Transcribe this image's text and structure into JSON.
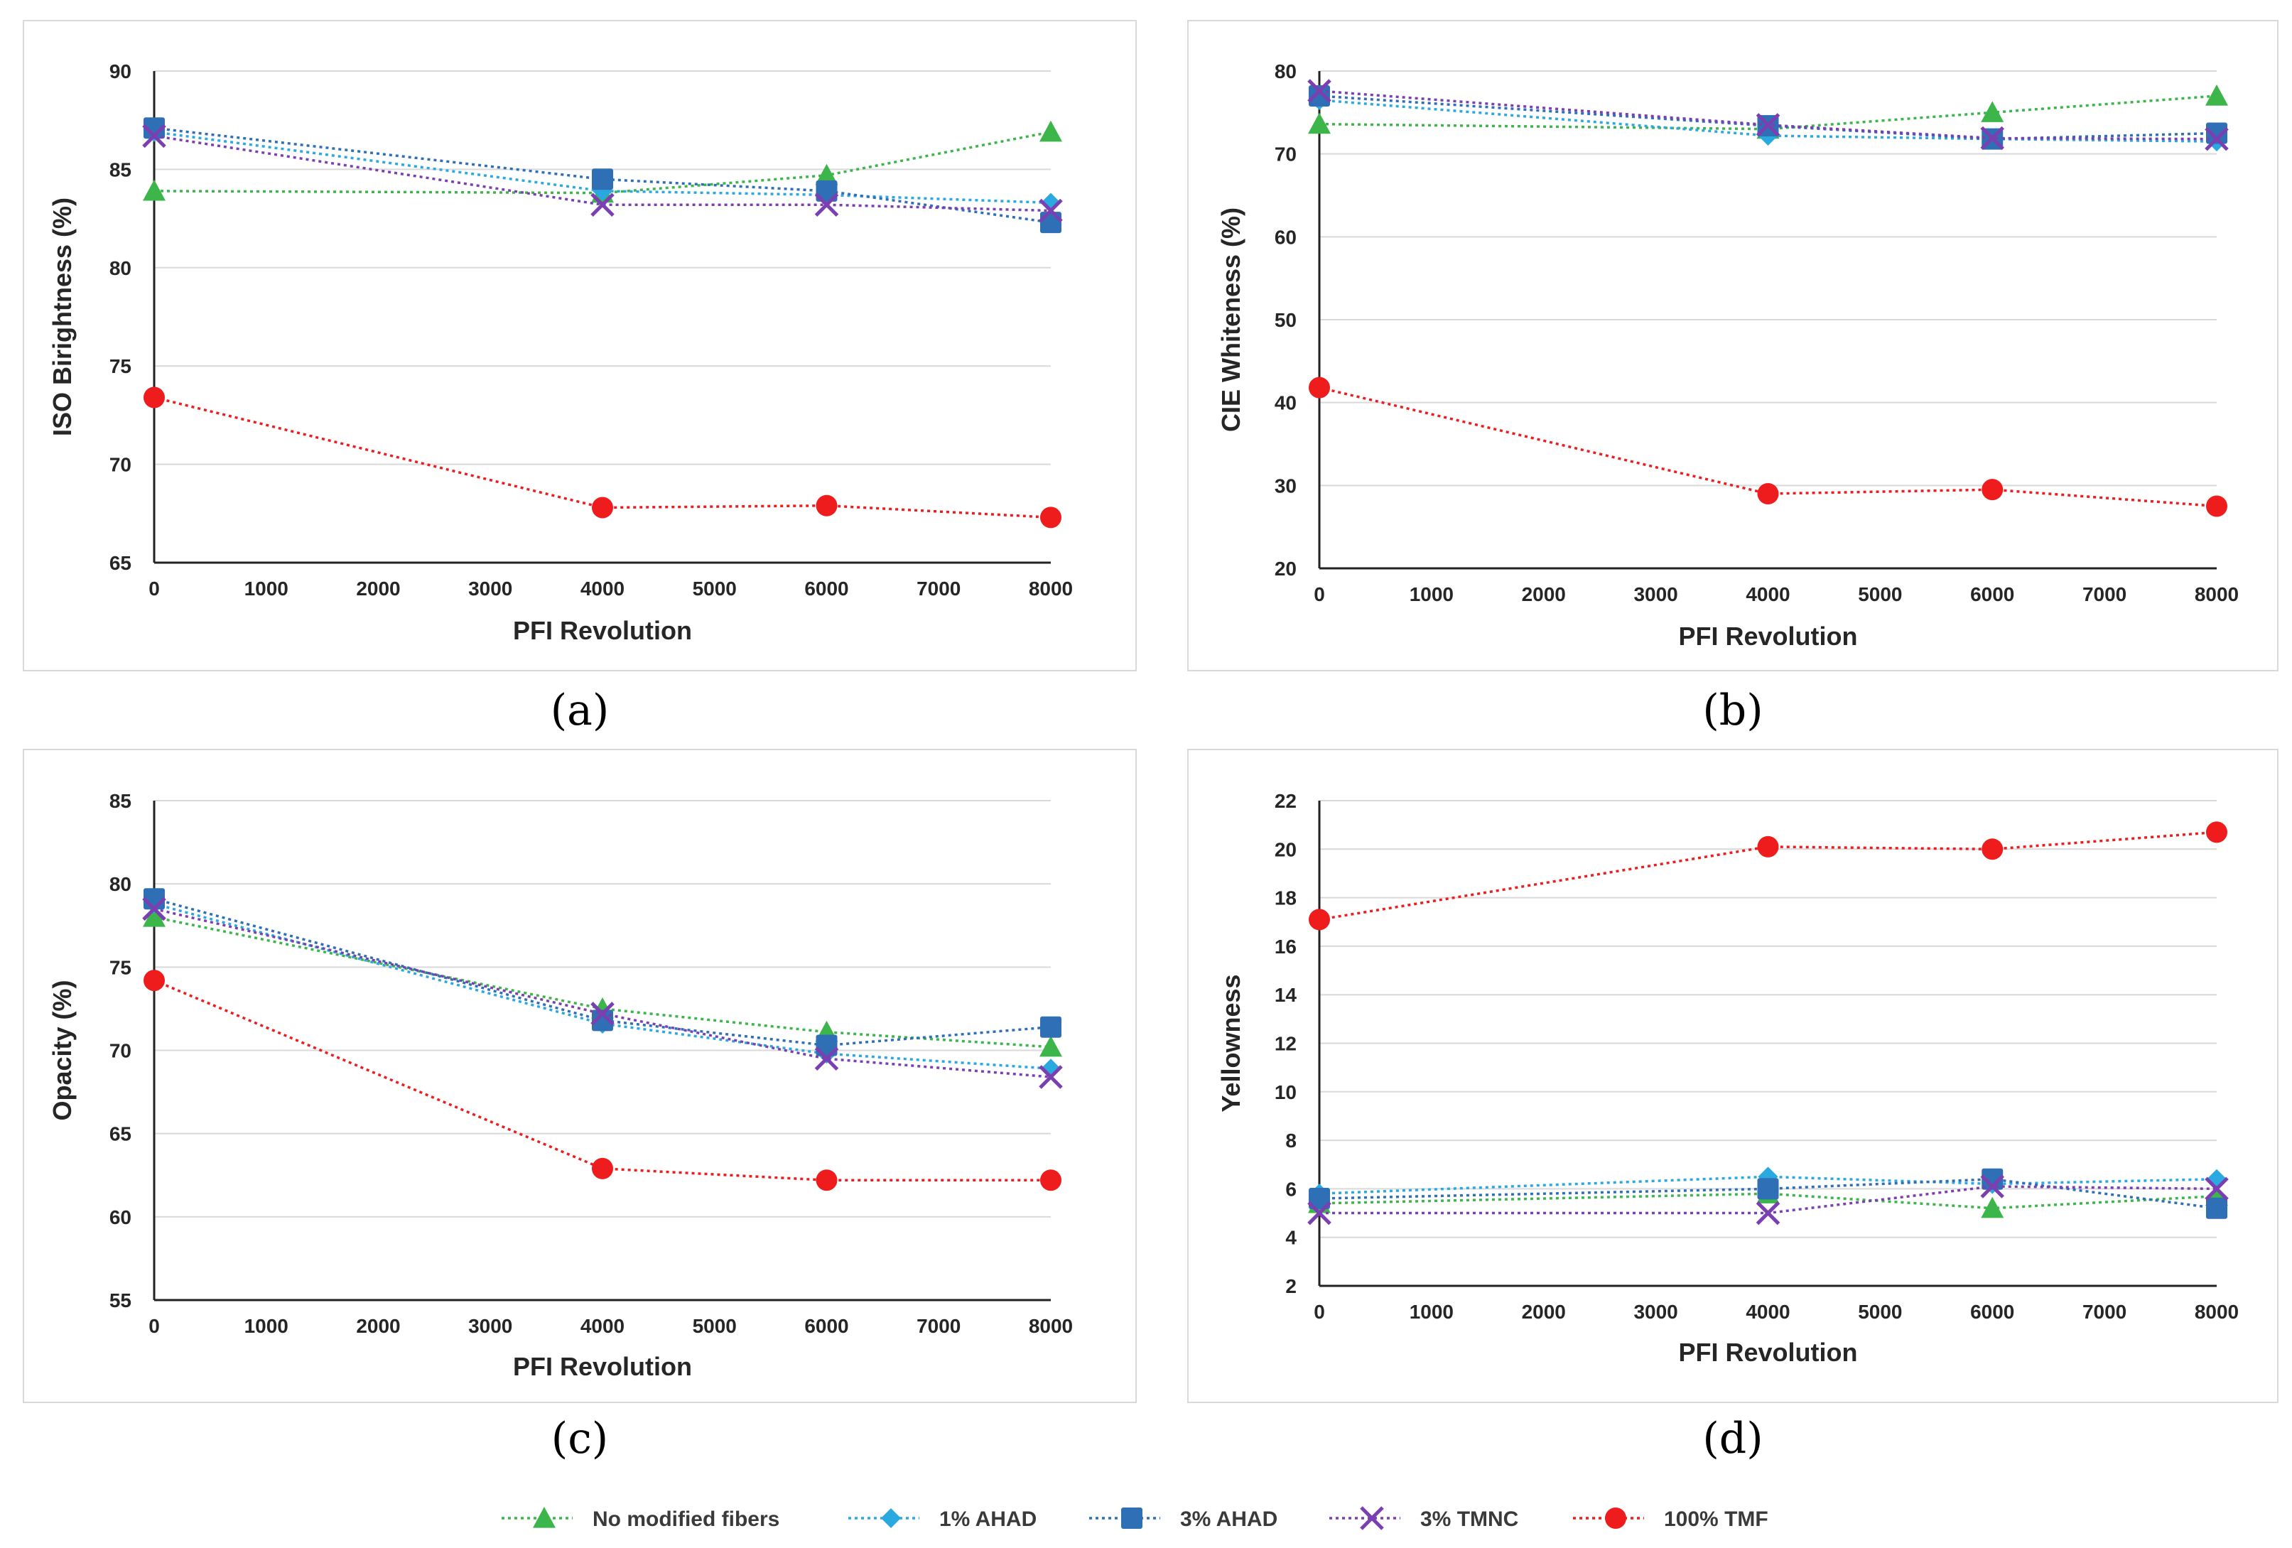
{
  "series_styles": [
    {
      "name": "No modified fibers",
      "color": "#3cb54a",
      "marker": "triangle"
    },
    {
      "name": "1% AHAD",
      "color": "#2aa9e0",
      "marker": "diamond"
    },
    {
      "name": "3% AHAD",
      "color": "#2f6fb5",
      "marker": "square"
    },
    {
      "name": "3% TMNC",
      "color": "#7a3fb0",
      "marker": "x"
    },
    {
      "name": "100% TMF",
      "color": "#ee1c1c",
      "marker": "circle"
    }
  ],
  "chart_data": [
    {
      "type": "line",
      "caption": "(a)",
      "xlabel": "PFI  Revolution",
      "ylabel": "ISO Birightness (%)",
      "xlim": [
        0,
        8000
      ],
      "xticks": [
        "0",
        "1000",
        "2000",
        "3000",
        "4000",
        "5000",
        "6000",
        "7000",
        "8000"
      ],
      "ylim": [
        65,
        90
      ],
      "yticks": [
        "65",
        "70",
        "75",
        "80",
        "85",
        "90"
      ],
      "x": [
        0,
        4000,
        6000,
        8000
      ],
      "series": [
        {
          "name": "No modified fibers",
          "values": [
            83.9,
            83.8,
            84.7,
            86.9
          ]
        },
        {
          "name": "1% AHAD",
          "values": [
            86.9,
            83.9,
            83.7,
            83.3
          ]
        },
        {
          "name": "3% AHAD",
          "values": [
            87.1,
            84.5,
            83.9,
            82.3
          ]
        },
        {
          "name": "3% TMNC",
          "values": [
            86.7,
            83.2,
            83.2,
            82.9
          ]
        },
        {
          "name": "100% TMF",
          "values": [
            73.4,
            67.8,
            67.9,
            67.3
          ]
        }
      ]
    },
    {
      "type": "line",
      "caption": "(b)",
      "xlabel": "PFI  Revolution",
      "ylabel": "CIE Whiteness (%)",
      "xlim": [
        0,
        8000
      ],
      "xticks": [
        "0",
        "1000",
        "2000",
        "3000",
        "4000",
        "5000",
        "6000",
        "7000",
        "8000"
      ],
      "ylim": [
        20,
        80
      ],
      "yticks": [
        "20",
        "30",
        "40",
        "50",
        "60",
        "70",
        "80"
      ],
      "x": [
        0,
        4000,
        6000,
        8000
      ],
      "series": [
        {
          "name": "No modified fibers",
          "values": [
            73.6,
            73.0,
            75.0,
            77.0
          ]
        },
        {
          "name": "1% AHAD",
          "values": [
            76.5,
            72.2,
            71.8,
            71.5
          ]
        },
        {
          "name": "3% AHAD",
          "values": [
            77.0,
            73.4,
            71.8,
            72.5
          ]
        },
        {
          "name": "3% TMNC",
          "values": [
            77.6,
            73.5,
            71.9,
            71.8
          ]
        },
        {
          "name": "100% TMF",
          "values": [
            41.8,
            29.0,
            29.5,
            27.5
          ]
        }
      ]
    },
    {
      "type": "line",
      "caption": "(c)",
      "xlabel": "PFI  Revolution",
      "ylabel": "Opacity (%)",
      "xlim": [
        0,
        8000
      ],
      "xticks": [
        "0",
        "1000",
        "2000",
        "3000",
        "4000",
        "5000",
        "6000",
        "7000",
        "8000"
      ],
      "ylim": [
        55,
        85
      ],
      "yticks": [
        "55",
        "60",
        "65",
        "70",
        "75",
        "80",
        "85"
      ],
      "x": [
        0,
        4000,
        6000,
        8000
      ],
      "series": [
        {
          "name": "No modified fibers",
          "values": [
            78.0,
            72.5,
            71.1,
            70.2
          ]
        },
        {
          "name": "1% AHAD",
          "values": [
            78.8,
            71.6,
            69.8,
            68.9
          ]
        },
        {
          "name": "3% AHAD",
          "values": [
            79.1,
            71.8,
            70.3,
            71.4
          ]
        },
        {
          "name": "3% TMNC",
          "values": [
            78.5,
            72.2,
            69.5,
            68.4
          ]
        },
        {
          "name": "100% TMF",
          "values": [
            74.2,
            62.9,
            62.2,
            62.2
          ]
        }
      ]
    },
    {
      "type": "line",
      "caption": "(d)",
      "xlabel": "PFI  Revolution",
      "ylabel": "Yellowness",
      "xlim": [
        0,
        8000
      ],
      "xticks": [
        "0",
        "1000",
        "2000",
        "3000",
        "4000",
        "5000",
        "6000",
        "7000",
        "8000"
      ],
      "ylim": [
        2,
        22
      ],
      "yticks": [
        "2",
        "4",
        "6",
        "8",
        "10",
        "12",
        "14",
        "16",
        "18",
        "20",
        "22"
      ],
      "x": [
        0,
        4000,
        6000,
        8000
      ],
      "series": [
        {
          "name": "No modified fibers",
          "values": [
            5.4,
            5.8,
            5.2,
            5.7
          ]
        },
        {
          "name": "1% AHAD",
          "values": [
            5.8,
            6.5,
            6.2,
            6.4
          ]
        },
        {
          "name": "3% AHAD",
          "values": [
            5.6,
            6.0,
            6.4,
            5.2
          ]
        },
        {
          "name": "3% TMNC",
          "values": [
            5.0,
            5.0,
            6.1,
            6.0
          ]
        },
        {
          "name": "100% TMF",
          "values": [
            17.1,
            20.1,
            20.0,
            20.7
          ]
        }
      ]
    }
  ]
}
